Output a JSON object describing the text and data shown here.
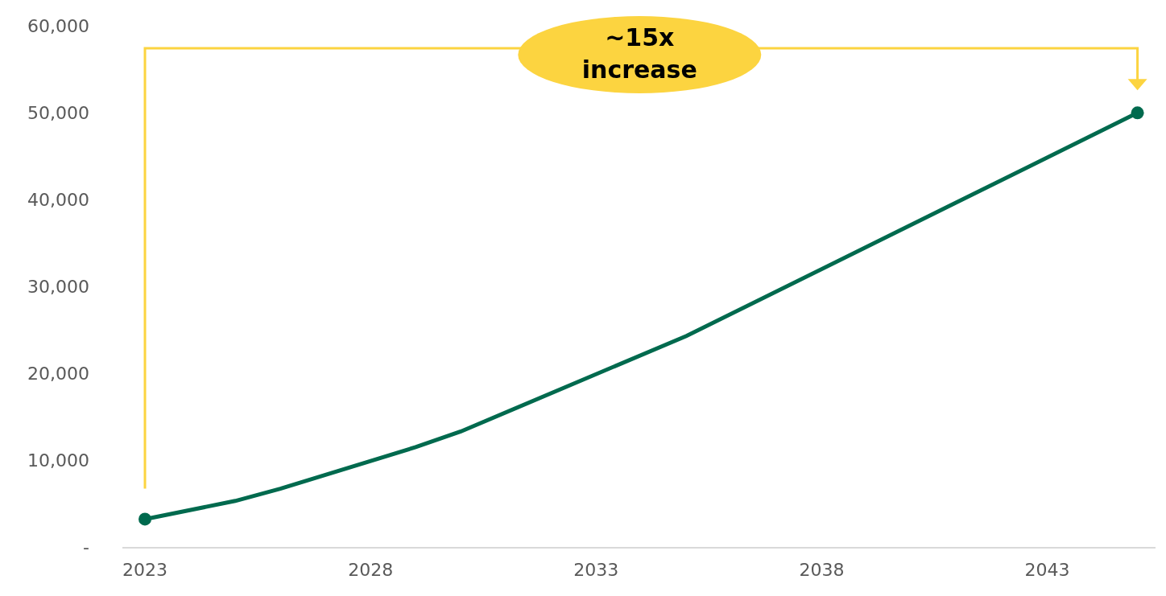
{
  "chart_data": {
    "type": "line",
    "x": [
      2023,
      2025,
      2026,
      2029,
      2030,
      2035,
      2045
    ],
    "series": [
      {
        "color": "#006a4e",
        "values": [
          3200,
          5300,
          6700,
          11500,
          13300,
          24300,
          50000
        ],
        "marker": "none"
      },
      {
        "type": "scatter",
        "color": "#006a4e",
        "x": [
          2023,
          2045
        ],
        "values": [
          3200,
          50000
        ],
        "marker": "circle"
      }
    ],
    "xlim": [
      2022.5,
      2045.4
    ],
    "xticks": [
      2023,
      2028,
      2033,
      2038,
      2043
    ],
    "ylim": [
      0,
      63000
    ],
    "yticks": [
      {
        "value": 0,
        "label": "-"
      },
      {
        "value": 10000,
        "label": "10,000"
      },
      {
        "value": 20000,
        "label": "20,000"
      },
      {
        "value": 30000,
        "label": "30,000"
      },
      {
        "value": 40000,
        "label": "40,000"
      },
      {
        "value": 50000,
        "label": "50,000"
      },
      {
        "value": 60000,
        "label": "60,000"
      }
    ],
    "grid": false,
    "line_style": "solid",
    "annotations": [
      "~15x\nincrease"
    ]
  }
}
